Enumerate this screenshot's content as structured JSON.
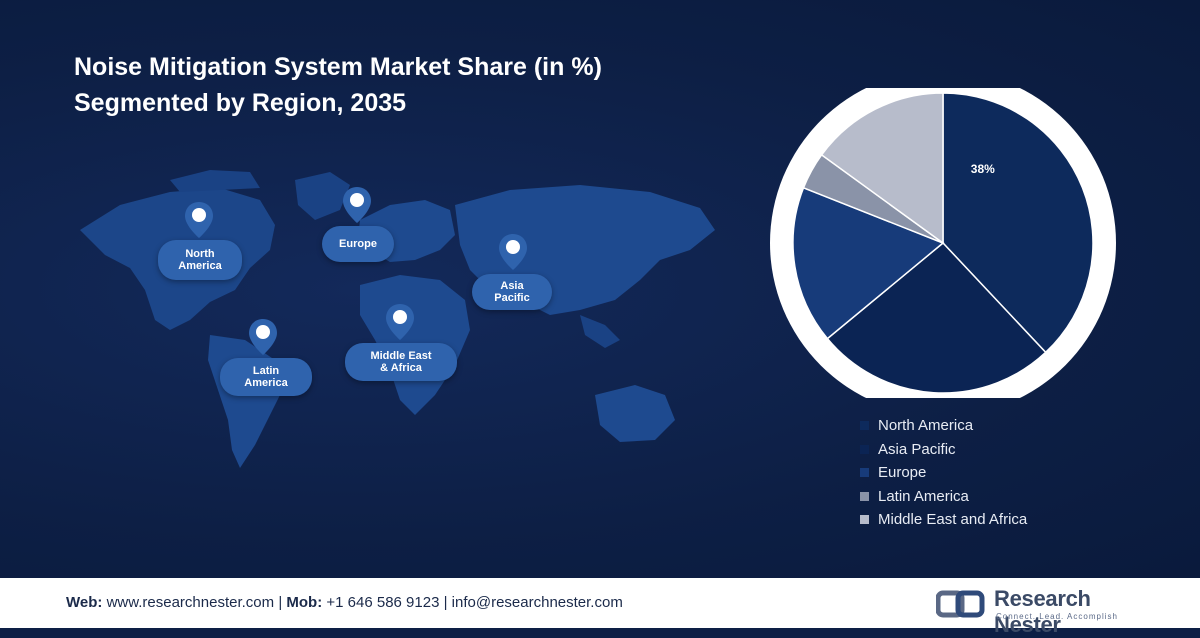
{
  "header": {
    "title_line1": "Noise Mitigation System Market Share (in %)",
    "title_line2": "Segmented by Region, 2035"
  },
  "map": {
    "labels": {
      "north_america": [
        "North",
        "America"
      ],
      "europe": [
        "Europe"
      ],
      "asia_pacific": [
        "Asia",
        "Pacific"
      ],
      "latin_america": [
        "Latin",
        "America"
      ],
      "middle_east_africa": [
        "Middle East",
        "& Africa"
      ]
    }
  },
  "chart_data": {
    "type": "pie",
    "slices": [
      {
        "name": "North America",
        "value": 38,
        "color": "#0d2a5c",
        "label": "38%"
      },
      {
        "name": "Asia Pacific",
        "value": 26,
        "color": "#0b2454",
        "label": ""
      },
      {
        "name": "Europe",
        "value": 17,
        "color": "#173b7a",
        "label": ""
      },
      {
        "name": "Latin America",
        "value": 4,
        "color": "#8a93a8",
        "label": ""
      },
      {
        "name": "Middle East and Africa",
        "value": 15,
        "color": "#b7bccb",
        "label": ""
      }
    ],
    "legend_position": "bottom-right",
    "colors": {
      "ring": "#ffffff",
      "label_text": "#ffffff"
    }
  },
  "legend": {
    "items": [
      {
        "label": "North America",
        "color": "#0d2a5c"
      },
      {
        "label": "Asia Pacific",
        "color": "#0b2454"
      },
      {
        "label": "Europe",
        "color": "#173b7a"
      },
      {
        "label": "Latin America",
        "color": "#8a93a8"
      },
      {
        "label": "Middle East and Africa",
        "color": "#b7bccb"
      }
    ]
  },
  "footer": {
    "web_label": "Web:",
    "web_value": "www.researchnester.com",
    "sep1": "|",
    "mob_label": "Mob:",
    "mob_value": "+1 646 586 9123",
    "sep2": "|",
    "email": "info@researchnester.com",
    "logo_name": "Research Nester",
    "logo_tagline": "Connect. Lead. Accomplish"
  }
}
